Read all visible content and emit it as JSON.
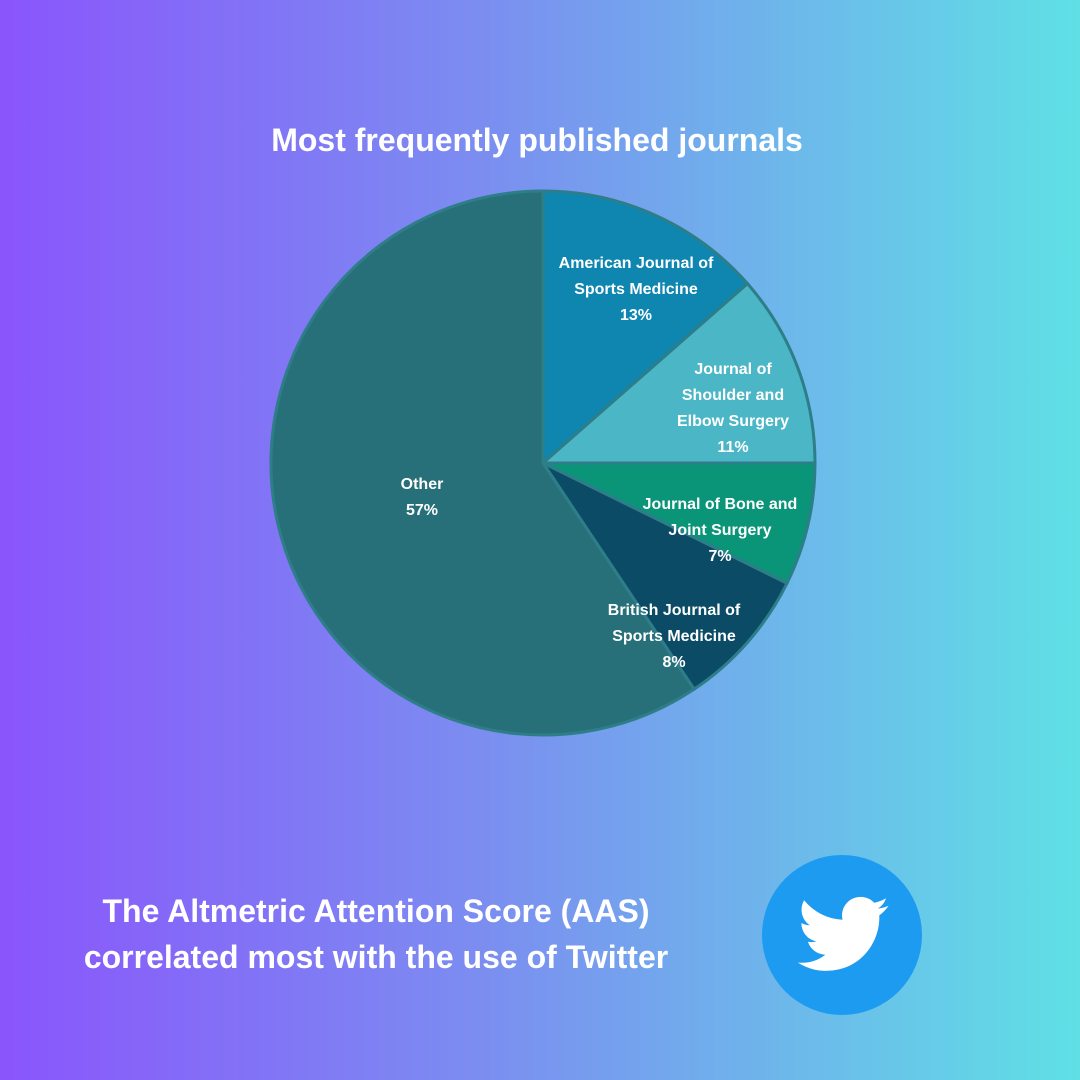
{
  "chart_data": {
    "type": "pie",
    "title": "Most frequently published journals",
    "categories": [
      "American Journal of Sports Medicine",
      "Journal of Shoulder and Elbow Surgery",
      "Journal of Bone and Joint Surgery",
      "British Journal of Sports Medicine",
      "Other"
    ],
    "values": [
      13,
      11,
      7,
      8,
      57
    ],
    "value_labels": [
      "13%",
      "11%",
      "7%",
      "8%",
      "57%"
    ],
    "colors": [
      "#0e86b0",
      "#4bb6c6",
      "#0a9478",
      "#0b4b66",
      "#277079"
    ]
  },
  "footer": {
    "lines": [
      "The Altmetric Attention Score (AAS)",
      "correlated most with the use of Twitter"
    ]
  }
}
